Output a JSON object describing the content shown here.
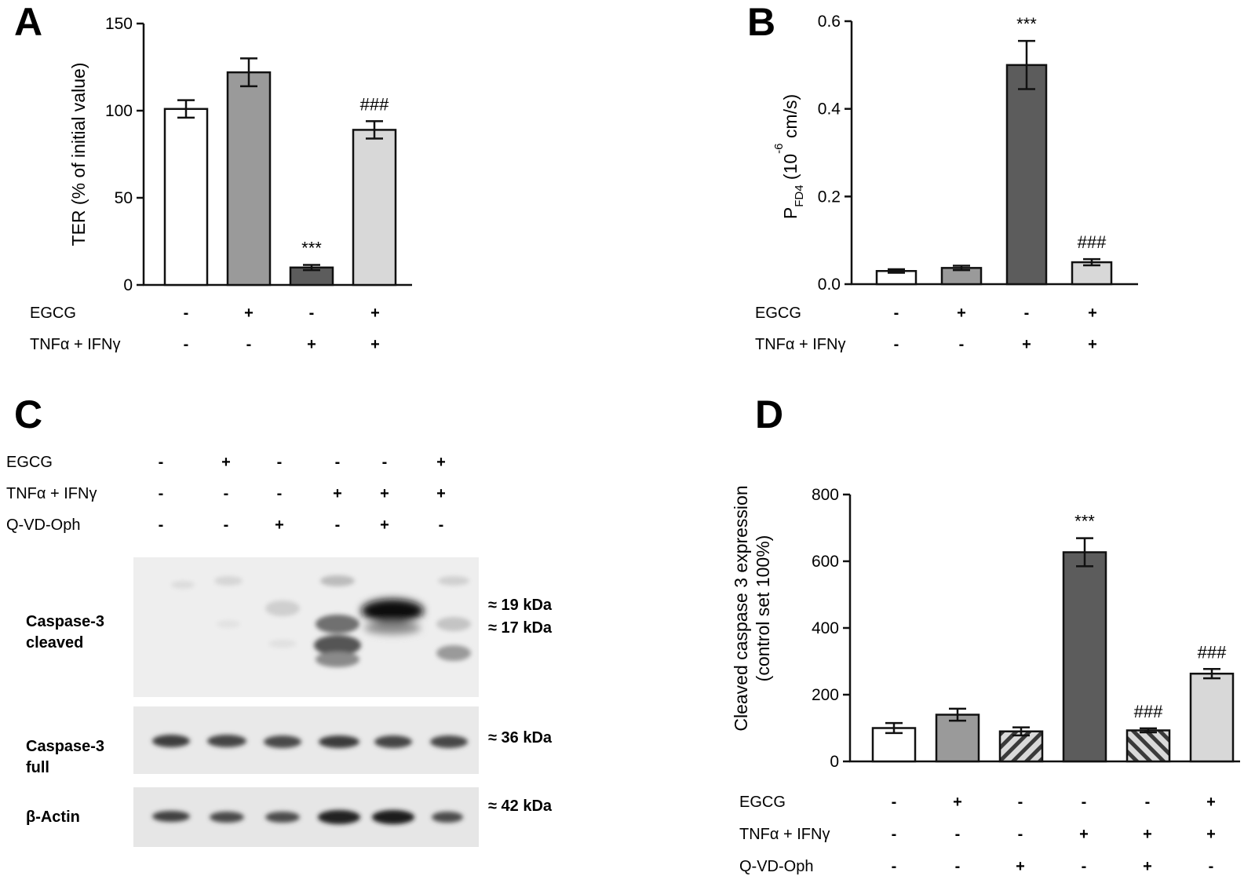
{
  "colors": {
    "white": "#ffffff",
    "mid_gray": "#9a9a9a",
    "dark_gray": "#5c5c5c",
    "light_gray": "#d8d8d8",
    "hatch": "#b8b8b8"
  },
  "panels": {
    "A": {
      "letter": "A",
      "condition_labels": [
        "EGCG",
        "TNFα + IFNγ"
      ],
      "conditions": [
        [
          "-",
          "+",
          "-",
          "+"
        ],
        [
          "-",
          "-",
          "+",
          "+"
        ]
      ]
    },
    "B": {
      "letter": "B",
      "condition_labels": [
        "EGCG",
        "TNFα + IFNγ"
      ],
      "conditions": [
        [
          "-",
          "+",
          "-",
          "+"
        ],
        [
          "-",
          "-",
          "+",
          "+"
        ]
      ]
    },
    "C": {
      "letter": "C",
      "condition_labels": [
        "EGCG",
        "TNFα + IFNγ",
        "Q-VD-Oph"
      ],
      "conditions": [
        [
          "-",
          "+",
          "-",
          "-",
          "-",
          "+"
        ],
        [
          "-",
          "-",
          "-",
          "+",
          "+",
          "+"
        ],
        [
          "-",
          "-",
          "+",
          "-",
          "+",
          "-"
        ]
      ],
      "blots": [
        {
          "label_lines": [
            "Caspase-3",
            "cleaved"
          ],
          "kda": [
            "≈ 19 kDa",
            "≈ 17 kDa"
          ]
        },
        {
          "label_lines": [
            "Caspase-3",
            "full"
          ],
          "kda": [
            "≈ 36 kDa"
          ]
        },
        {
          "label_lines": [
            "β-Actin"
          ],
          "kda": [
            "≈ 42 kDa"
          ]
        }
      ]
    },
    "D": {
      "letter": "D",
      "condition_labels": [
        "EGCG",
        "TNFα + IFNγ",
        "Q-VD-Oph"
      ],
      "conditions": [
        [
          "-",
          "+",
          "-",
          "-",
          "-",
          "+"
        ],
        [
          "-",
          "-",
          "-",
          "+",
          "+",
          "+"
        ],
        [
          "-",
          "-",
          "+",
          "-",
          "+",
          "-"
        ]
      ]
    }
  },
  "chart_data": [
    {
      "panel": "A",
      "type": "bar",
      "ylabel": "TER (% of initial value)",
      "ylim": [
        0,
        150
      ],
      "yticks": [
        "0",
        "50",
        "100",
        "150"
      ],
      "values": [
        101,
        122,
        10,
        89
      ],
      "errors": [
        5,
        8,
        1.5,
        5
      ],
      "fills": [
        "white",
        "mid_gray",
        "dark_gray",
        "light_gray"
      ],
      "annotations": [
        "",
        "",
        "***",
        "###"
      ]
    },
    {
      "panel": "B",
      "type": "bar",
      "ylabel": "P",
      "ylabel_sub": "FD4",
      "ylabel_rest": " (10",
      "ylabel_sup": "-6",
      "ylabel_end": " cm/s)",
      "ylim": [
        0,
        0.6
      ],
      "yticks": [
        "0.0",
        "0.2",
        "0.4",
        "0.6"
      ],
      "values": [
        0.03,
        0.037,
        0.5,
        0.05
      ],
      "errors": [
        0.004,
        0.005,
        0.055,
        0.007
      ],
      "fills": [
        "white",
        "mid_gray",
        "dark_gray",
        "light_gray"
      ],
      "annotations": [
        "",
        "",
        "***",
        "###"
      ]
    },
    {
      "panel": "D",
      "type": "bar",
      "ylabel_lines": [
        "Cleaved caspase 3 expression",
        "(control set 100%)"
      ],
      "ylim": [
        0,
        800
      ],
      "yticks": [
        "0",
        "200",
        "400",
        "600",
        "800"
      ],
      "values": [
        100,
        140,
        90,
        627,
        93,
        263
      ],
      "errors": [
        15,
        18,
        12,
        42,
        6,
        14
      ],
      "fills": [
        "white",
        "mid_gray",
        "hatch",
        "dark_gray",
        "hatch_rev",
        "light_gray"
      ],
      "annotations": [
        "",
        "",
        "",
        "***",
        "###",
        "###"
      ]
    }
  ]
}
